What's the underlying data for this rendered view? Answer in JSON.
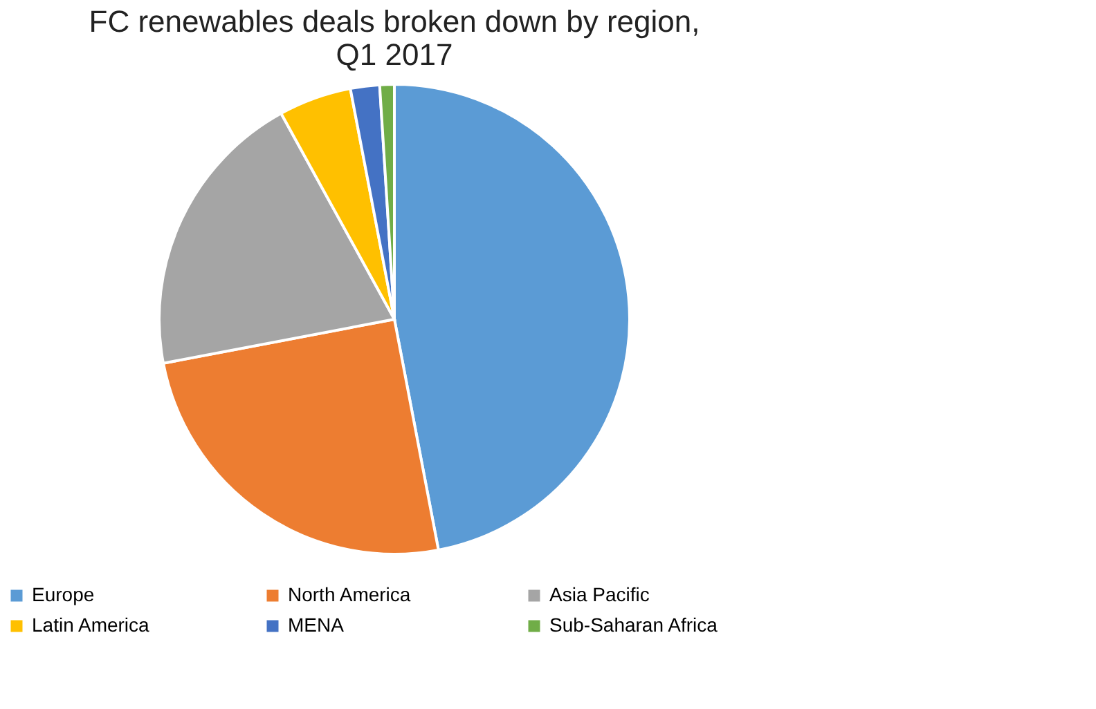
{
  "chart_data": {
    "type": "pie",
    "title": "FC renewables deals broken down by region,\nQ1 2017",
    "categories": [
      "Europe",
      "North America",
      "Asia Pacific",
      "Latin America",
      "MENA",
      "Sub-Saharan Africa"
    ],
    "values": [
      47,
      25,
      20,
      5,
      2,
      1
    ],
    "colors": [
      "#5b9bd5",
      "#ed7d31",
      "#a5a5a5",
      "#ffc000",
      "#4472c4",
      "#70ad47"
    ],
    "legend": "bottom"
  }
}
